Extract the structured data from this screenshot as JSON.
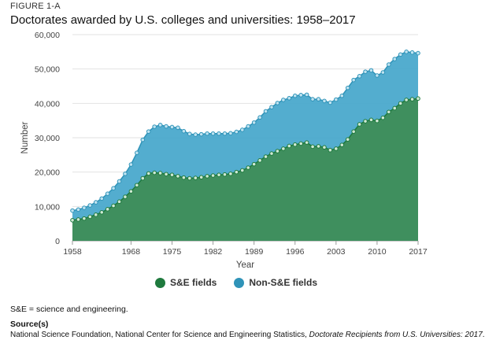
{
  "figure_label": "FIGURE 1-A",
  "title": "Doctorates awarded by U.S. colleges and universities: 1958–2017",
  "note": "S&E = science and engineering.",
  "source_heading": "Source(s)",
  "source_pre": "National Science Foundation, National Center for Science and Engineering Statistics, ",
  "source_italic": "Doctorate Recipients from U.S. Universities: 2017",
  "source_post": ".",
  "colors": {
    "se": "#3f8f5e",
    "se_marker": "#1f7a3e",
    "nonse": "#4aa9cc",
    "nonse_marker": "#2f93b8"
  },
  "chart_data": {
    "type": "area",
    "stacked": true,
    "title": "Doctorates awarded by U.S. colleges and universities: 1958–2017",
    "xlabel": "Year",
    "ylabel": "Number",
    "ylim": [
      0,
      60000
    ],
    "xlim": [
      1958,
      2017
    ],
    "grid": true,
    "legend_position": "bottom",
    "y_ticks": [
      0,
      10000,
      20000,
      30000,
      40000,
      50000,
      60000
    ],
    "y_tick_labels": [
      "0",
      "10,000",
      "20,000",
      "30,000",
      "40,000",
      "50,000",
      "60,000"
    ],
    "x_ticks": [
      1958,
      1968,
      1975,
      1982,
      1989,
      1996,
      2003,
      2010,
      2017
    ],
    "x": [
      1958,
      1959,
      1960,
      1961,
      1962,
      1963,
      1964,
      1965,
      1966,
      1967,
      1968,
      1969,
      1970,
      1971,
      1972,
      1973,
      1974,
      1975,
      1976,
      1977,
      1978,
      1979,
      1980,
      1981,
      1982,
      1983,
      1984,
      1985,
      1986,
      1987,
      1988,
      1989,
      1990,
      1991,
      1992,
      1993,
      1994,
      1995,
      1996,
      1997,
      1998,
      1999,
      2000,
      2001,
      2002,
      2003,
      2004,
      2005,
      2006,
      2007,
      2008,
      2009,
      2010,
      2011,
      2012,
      2013,
      2014,
      2015,
      2016,
      2017
    ],
    "series": [
      {
        "name": "S&E fields",
        "values": [
          6000,
          6200,
          6500,
          7000,
          7600,
          8300,
          9200,
          10200,
          11400,
          12800,
          14400,
          16200,
          18200,
          19600,
          19800,
          19700,
          19400,
          19200,
          18800,
          18400,
          18200,
          18300,
          18500,
          18800,
          19000,
          19200,
          19300,
          19500,
          20000,
          20500,
          21300,
          22300,
          23400,
          24500,
          25400,
          26100,
          26800,
          27600,
          28000,
          28300,
          28600,
          27400,
          27500,
          27200,
          26400,
          26800,
          27900,
          29500,
          31800,
          33900,
          34800,
          35200,
          34900,
          35800,
          37500,
          38600,
          40000,
          41000,
          41200,
          41400
        ]
      },
      {
        "name": "Non-S&E fields",
        "values": [
          2800,
          2900,
          3100,
          3300,
          3600,
          4000,
          4500,
          5100,
          5900,
          6700,
          7800,
          9400,
          11200,
          12200,
          13400,
          14000,
          13900,
          13900,
          14100,
          13500,
          12900,
          12600,
          12500,
          12400,
          12200,
          12000,
          11900,
          11800,
          11700,
          11800,
          12000,
          12100,
          12500,
          13200,
          13500,
          14000,
          14200,
          13900,
          14200,
          14100,
          13900,
          13800,
          13700,
          13500,
          13800,
          14300,
          14300,
          15000,
          15000,
          14000,
          14400,
          14400,
          13200,
          13200,
          13800,
          14300,
          14200,
          14000,
          13600,
          13200
        ]
      }
    ]
  }
}
